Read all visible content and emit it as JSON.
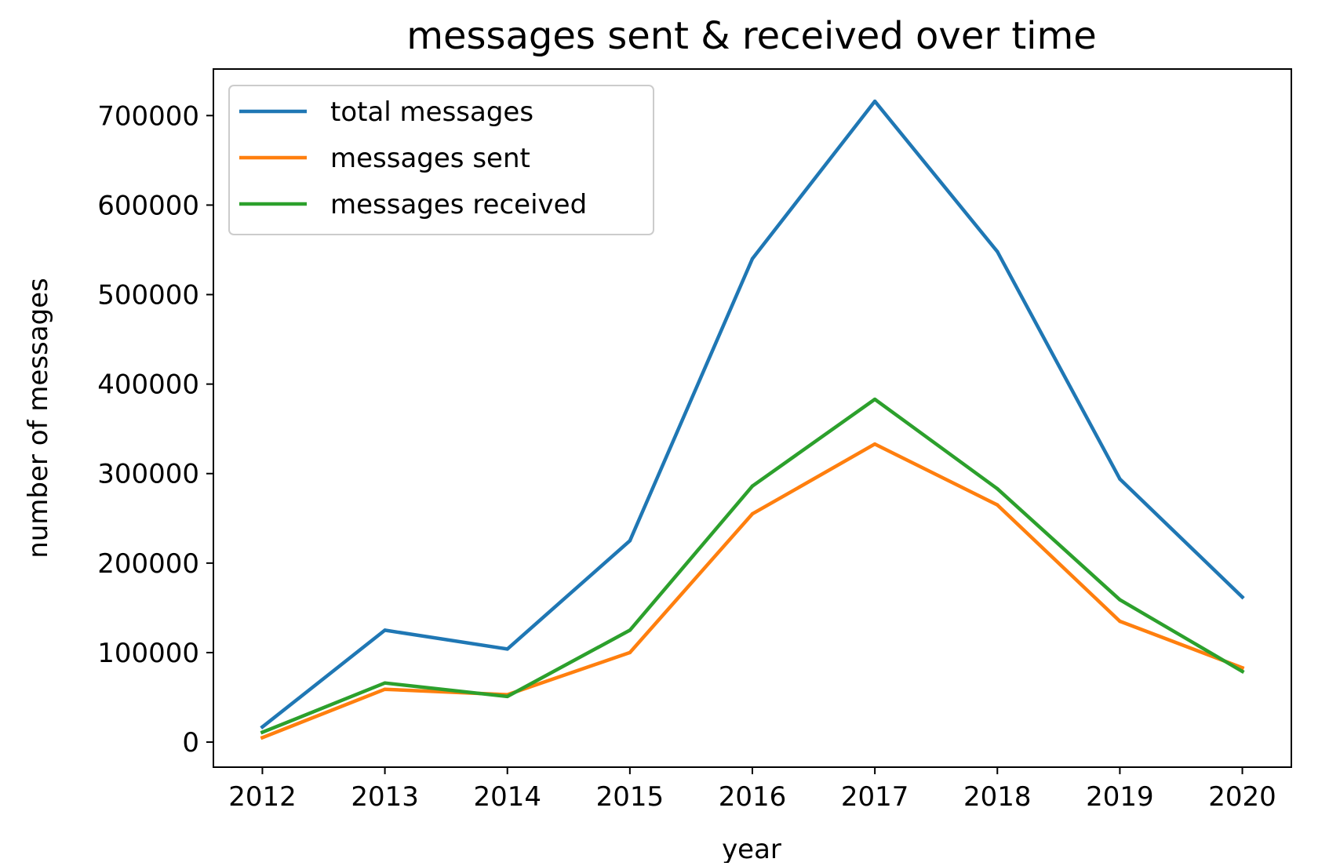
{
  "chart_data": {
    "type": "line",
    "title": "messages sent & received over time",
    "xlabel": "year",
    "ylabel": "number of messages",
    "x": [
      2012,
      2013,
      2014,
      2015,
      2016,
      2017,
      2018,
      2019,
      2020
    ],
    "x_ticks": [
      "2012",
      "2013",
      "2014",
      "2015",
      "2016",
      "2017",
      "2018",
      "2019",
      "2020"
    ],
    "y_ticks": [
      "0",
      "100000",
      "200000",
      "300000",
      "400000",
      "500000",
      "600000",
      "700000"
    ],
    "y_tick_values": [
      0,
      100000,
      200000,
      300000,
      400000,
      500000,
      600000,
      700000
    ],
    "xlim": [
      2011.6,
      2020.4
    ],
    "ylim": [
      -28000,
      752000
    ],
    "grid": false,
    "legend_position": "upper-left",
    "series": [
      {
        "name": "total messages",
        "color": "#1f77b4",
        "values": [
          17000,
          125000,
          104000,
          225000,
          540000,
          716000,
          548000,
          294000,
          162000
        ]
      },
      {
        "name": "messages sent",
        "color": "#ff7f0e",
        "values": [
          5000,
          59000,
          53000,
          100000,
          255000,
          333000,
          265000,
          135000,
          83000
        ]
      },
      {
        "name": "messages received",
        "color": "#2ca02c",
        "values": [
          11000,
          66000,
          51000,
          125000,
          286000,
          383000,
          283000,
          159000,
          79000
        ]
      }
    ]
  }
}
